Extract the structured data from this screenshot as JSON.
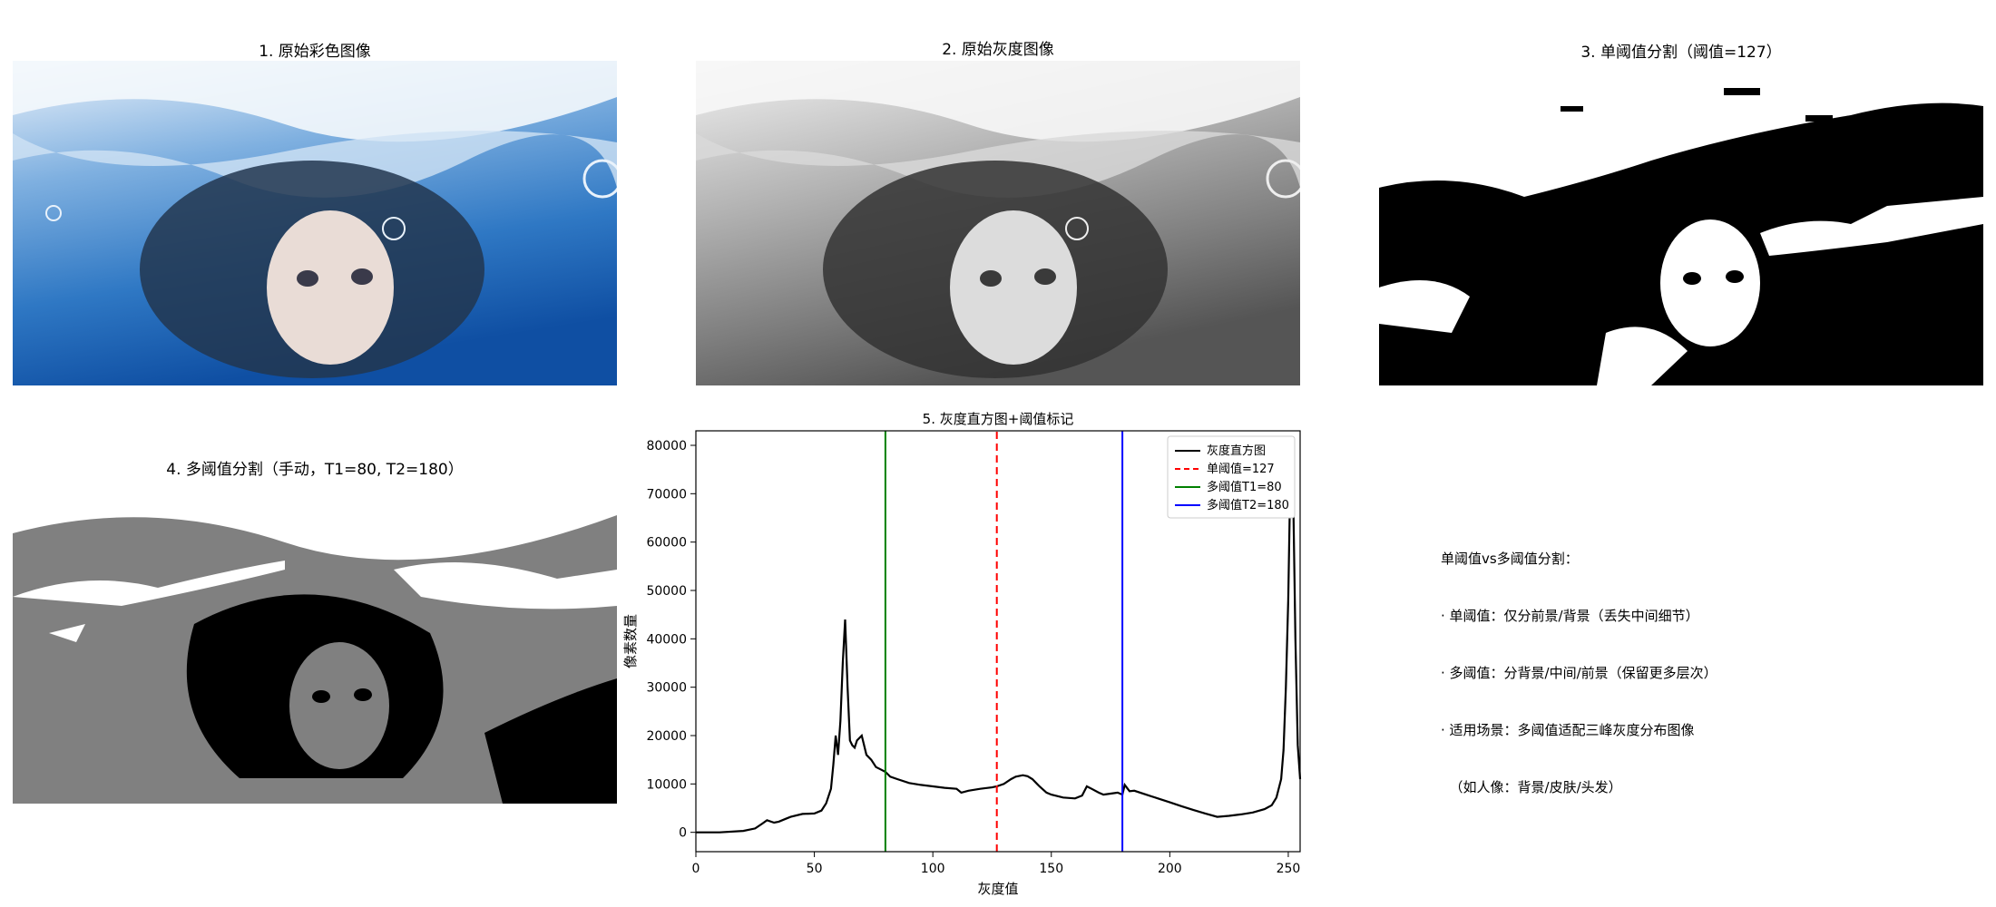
{
  "panels": {
    "p1": {
      "title": "1. 原始彩色图像"
    },
    "p2": {
      "title": "2. 原始灰度图像"
    },
    "p3": {
      "title": "3. 单阈值分割（阈值=127）"
    },
    "p4": {
      "title": "4. 多阈值分割（手动，T1=80, T2=180）"
    }
  },
  "note": {
    "lines": [
      "单阈值vs多阈值分割：",
      "· 单阈值：仅分前景/背景（丢失中间细节）",
      "· 多阈值：分背景/中间/前景（保留更多层次）",
      "· 适用场景：多阈值适配三峰灰度分布图像",
      "  （如人像：背景/皮肤/头发）"
    ]
  },
  "chart_data": {
    "type": "line",
    "title": "5. 灰度直方图+阈值标记",
    "xlabel": "灰度值",
    "ylabel": "像素数量",
    "xlim": [
      0,
      255
    ],
    "ylim": [
      -4000,
      83000
    ],
    "xticks": [
      0,
      50,
      100,
      150,
      200,
      250
    ],
    "yticks": [
      0,
      10000,
      20000,
      30000,
      40000,
      50000,
      60000,
      70000,
      80000
    ],
    "grid": false,
    "legend_position": "top-right",
    "series": [
      {
        "name": "灰度直方图",
        "color": "#000000",
        "style": "solid",
        "x": [
          0,
          10,
          20,
          25,
          28,
          30,
          33,
          35,
          38,
          40,
          45,
          50,
          53,
          55,
          57,
          58,
          59,
          60,
          61,
          62,
          63,
          64,
          65,
          66,
          67,
          68,
          70,
          72,
          74,
          76,
          78,
          80,
          82,
          85,
          90,
          95,
          100,
          105,
          110,
          112,
          115,
          120,
          125,
          127,
          130,
          133,
          135,
          138,
          140,
          142,
          145,
          148,
          150,
          155,
          160,
          163,
          165,
          167,
          170,
          172,
          175,
          178,
          180,
          181,
          183,
          185,
          190,
          195,
          200,
          205,
          210,
          215,
          220,
          225,
          230,
          235,
          240,
          243,
          245,
          247,
          248,
          249,
          250,
          251,
          252,
          253,
          254,
          255
        ],
        "y": [
          0,
          0,
          300,
          800,
          1800,
          2500,
          2000,
          2200,
          2800,
          3200,
          3800,
          3900,
          4500,
          6000,
          9000,
          14000,
          20000,
          16000,
          23000,
          35000,
          44000,
          30000,
          19000,
          18000,
          17500,
          19000,
          20000,
          16000,
          15000,
          13500,
          13000,
          12500,
          11500,
          11000,
          10200,
          9800,
          9500,
          9200,
          9000,
          8200,
          8600,
          9000,
          9300,
          9500,
          10000,
          11000,
          11500,
          11800,
          11600,
          11000,
          9500,
          8200,
          7800,
          7200,
          7000,
          7600,
          9500,
          9000,
          8200,
          7800,
          8000,
          8200,
          7800,
          9800,
          8500,
          8600,
          7800,
          7000,
          6200,
          5400,
          4600,
          3900,
          3200,
          3400,
          3700,
          4100,
          4800,
          5600,
          7200,
          11000,
          17000,
          30000,
          48000,
          78000,
          72000,
          40000,
          18000,
          11000
        ]
      },
      {
        "name": "单阈值=127",
        "color": "#ff0000",
        "style": "dashed",
        "x": [
          127,
          127
        ],
        "y": [
          -4000,
          83000
        ]
      },
      {
        "name": "多阈值T1=80",
        "color": "#008000",
        "style": "solid",
        "x": [
          80,
          80
        ],
        "y": [
          -4000,
          83000
        ]
      },
      {
        "name": "多阈值T2=180",
        "color": "#0000ff",
        "style": "solid",
        "x": [
          180,
          180
        ],
        "y": [
          -4000,
          83000
        ]
      }
    ]
  }
}
